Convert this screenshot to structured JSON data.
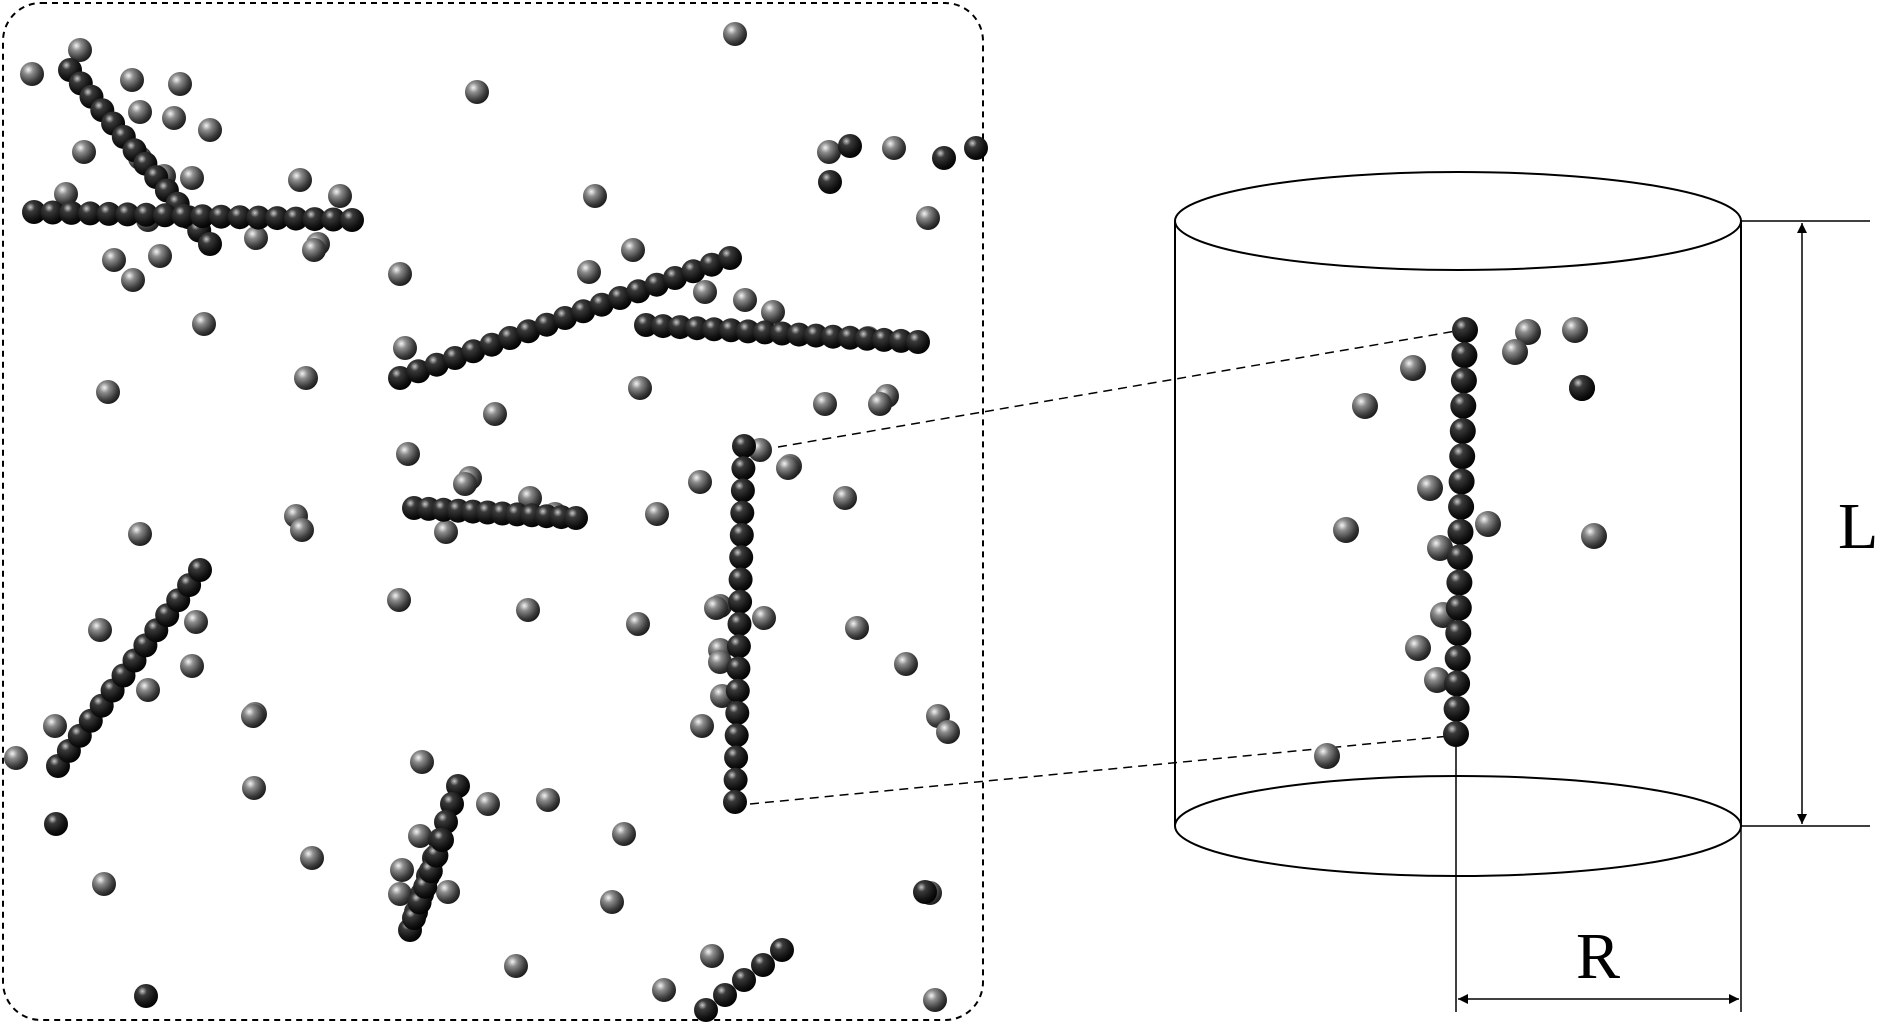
{
  "labels": {
    "length": "L",
    "radius": "R"
  },
  "colors": {
    "free_particle": "#4a4a4a",
    "chain_particle": "#111111",
    "outline": "#000000"
  }
}
